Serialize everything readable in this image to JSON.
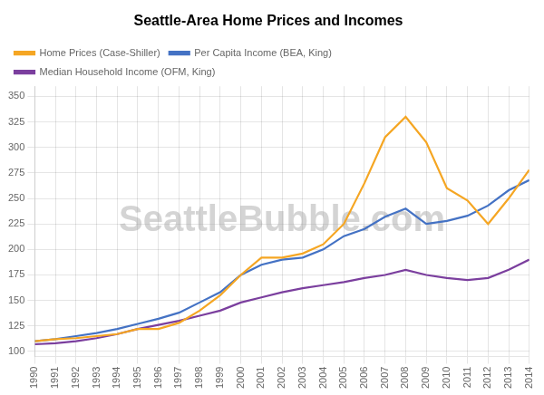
{
  "chart_data": {
    "type": "line",
    "title": "Seattle-Area Home Prices and Incomes",
    "x": [
      1990,
      1991,
      1992,
      1993,
      1994,
      1995,
      1996,
      1997,
      1998,
      1999,
      2000,
      2001,
      2002,
      2003,
      2004,
      2005,
      2006,
      2007,
      2008,
      2009,
      2010,
      2011,
      2012,
      2013,
      2014
    ],
    "series": [
      {
        "name": "Home Prices (Case-Shiller)",
        "color": "#F5A623",
        "values": [
          110,
          112,
          113,
          115,
          117,
          122,
          122,
          128,
          140,
          155,
          175,
          192,
          192,
          196,
          205,
          225,
          265,
          310,
          330,
          305,
          260,
          248,
          225,
          250,
          278
        ]
      },
      {
        "name": "Per Capita Income (BEA, King)",
        "color": "#4472C4",
        "values": [
          110,
          112,
          115,
          118,
          122,
          127,
          132,
          138,
          148,
          158,
          175,
          185,
          190,
          192,
          200,
          213,
          220,
          232,
          240,
          225,
          228,
          233,
          243,
          258,
          268
        ]
      },
      {
        "name": "Median Household Income (OFM, King)",
        "color": "#7B3F9E",
        "values": [
          107,
          108,
          110,
          113,
          117,
          122,
          126,
          130,
          135,
          140,
          148,
          153,
          158,
          162,
          165,
          168,
          172,
          175,
          180,
          175,
          172,
          170,
          172,
          180,
          190
        ]
      }
    ],
    "xlim": [
      1990,
      2014
    ],
    "xticks": [
      1990,
      1991,
      1992,
      1993,
      1994,
      1995,
      1996,
      1997,
      1998,
      1999,
      2000,
      2001,
      2002,
      2003,
      2004,
      2005,
      2006,
      2007,
      2008,
      2009,
      2010,
      2011,
      2012,
      2013,
      2014
    ],
    "ylim": [
      95,
      360
    ],
    "yticks": [
      100,
      125,
      150,
      175,
      200,
      225,
      250,
      275,
      300,
      325,
      350
    ],
    "grid": true,
    "legend": "upper left",
    "annotations": [
      "SeattleBubble.com"
    ]
  }
}
